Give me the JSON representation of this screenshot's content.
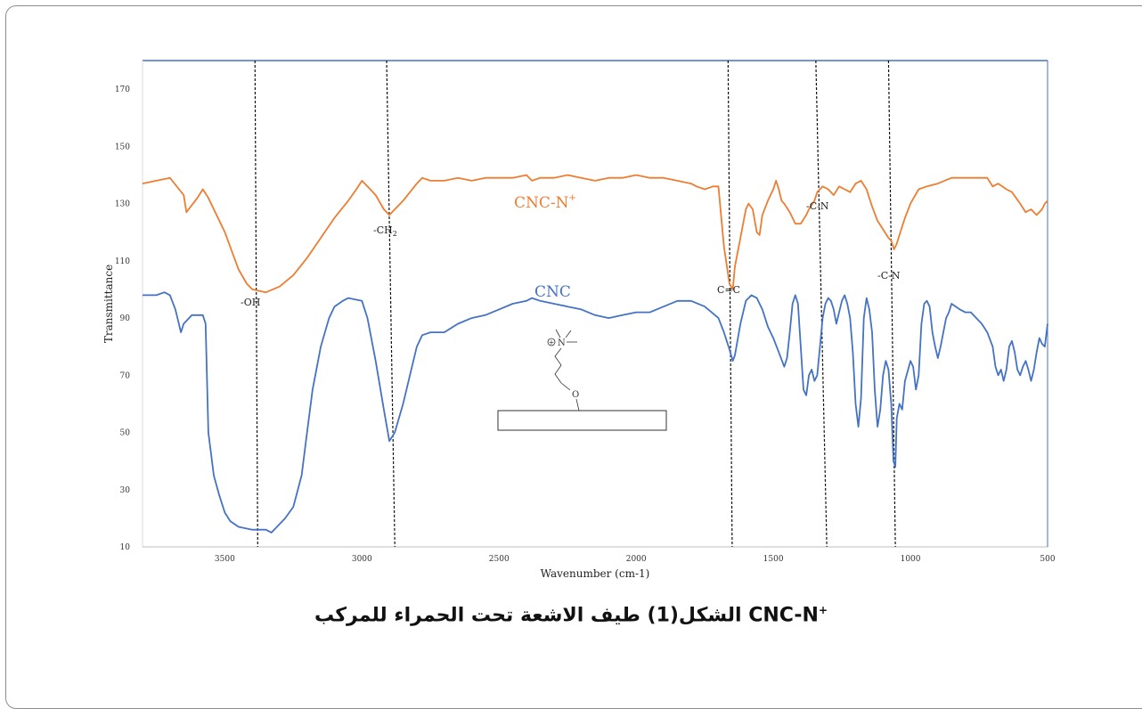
{
  "chart_data": {
    "type": "line",
    "xlabel": "Wavenumber (cm-1)",
    "ylabel": "Transmittance",
    "xlim": [
      3800,
      500
    ],
    "ylim": [
      10,
      180
    ],
    "x_reversed": true,
    "x_ticks": [
      3500,
      3000,
      2500,
      2000,
      1500,
      1000,
      500
    ],
    "y_ticks": [
      10,
      30,
      50,
      70,
      90,
      110,
      130,
      150,
      170
    ],
    "grid": false,
    "legend": "none",
    "series": [
      {
        "name": "CNC-N+",
        "color": "#ED7D31",
        "points": [
          [
            3800,
            137
          ],
          [
            3750,
            138
          ],
          [
            3700,
            139
          ],
          [
            3650,
            133
          ],
          [
            3640,
            127
          ],
          [
            3600,
            132
          ],
          [
            3580,
            135
          ],
          [
            3560,
            132
          ],
          [
            3500,
            120
          ],
          [
            3450,
            107
          ],
          [
            3420,
            102
          ],
          [
            3400,
            100
          ],
          [
            3350,
            99
          ],
          [
            3300,
            101
          ],
          [
            3250,
            105
          ],
          [
            3200,
            111
          ],
          [
            3150,
            118
          ],
          [
            3100,
            125
          ],
          [
            3050,
            131
          ],
          [
            3020,
            135
          ],
          [
            3000,
            138
          ],
          [
            2980,
            136
          ],
          [
            2950,
            133
          ],
          [
            2920,
            128
          ],
          [
            2900,
            126
          ],
          [
            2880,
            128
          ],
          [
            2850,
            131
          ],
          [
            2800,
            137
          ],
          [
            2780,
            139
          ],
          [
            2750,
            138
          ],
          [
            2700,
            138
          ],
          [
            2650,
            139
          ],
          [
            2600,
            138
          ],
          [
            2550,
            139
          ],
          [
            2500,
            139
          ],
          [
            2450,
            139
          ],
          [
            2400,
            140
          ],
          [
            2380,
            138
          ],
          [
            2350,
            139
          ],
          [
            2300,
            139
          ],
          [
            2250,
            140
          ],
          [
            2200,
            139
          ],
          [
            2150,
            138
          ],
          [
            2100,
            139
          ],
          [
            2050,
            139
          ],
          [
            2000,
            140
          ],
          [
            1950,
            139
          ],
          [
            1900,
            139
          ],
          [
            1850,
            138
          ],
          [
            1800,
            137
          ],
          [
            1780,
            136
          ],
          [
            1750,
            135
          ],
          [
            1720,
            136
          ],
          [
            1700,
            136
          ],
          [
            1680,
            115
          ],
          [
            1660,
            102
          ],
          [
            1648,
            100
          ],
          [
            1640,
            108
          ],
          [
            1620,
            118
          ],
          [
            1600,
            128
          ],
          [
            1590,
            130
          ],
          [
            1575,
            128
          ],
          [
            1560,
            120
          ],
          [
            1550,
            119
          ],
          [
            1540,
            126
          ],
          [
            1520,
            131
          ],
          [
            1500,
            135
          ],
          [
            1490,
            138
          ],
          [
            1480,
            135
          ],
          [
            1470,
            131
          ],
          [
            1460,
            130
          ],
          [
            1440,
            127
          ],
          [
            1420,
            123
          ],
          [
            1400,
            123
          ],
          [
            1380,
            126
          ],
          [
            1370,
            128
          ],
          [
            1350,
            131
          ],
          [
            1340,
            134
          ],
          [
            1320,
            136
          ],
          [
            1300,
            135
          ],
          [
            1280,
            133
          ],
          [
            1260,
            136
          ],
          [
            1240,
            135
          ],
          [
            1220,
            134
          ],
          [
            1200,
            137
          ],
          [
            1180,
            138
          ],
          [
            1160,
            135
          ],
          [
            1140,
            129
          ],
          [
            1120,
            124
          ],
          [
            1100,
            121
          ],
          [
            1080,
            118
          ],
          [
            1070,
            117
          ],
          [
            1060,
            114
          ],
          [
            1050,
            116
          ],
          [
            1040,
            119
          ],
          [
            1020,
            125
          ],
          [
            1000,
            130
          ],
          [
            970,
            135
          ],
          [
            940,
            136
          ],
          [
            900,
            137
          ],
          [
            850,
            139
          ],
          [
            800,
            139
          ],
          [
            750,
            139
          ],
          [
            720,
            139
          ],
          [
            700,
            136
          ],
          [
            680,
            137
          ],
          [
            650,
            135
          ],
          [
            630,
            134
          ],
          [
            600,
            130
          ],
          [
            580,
            127
          ],
          [
            560,
            128
          ],
          [
            540,
            126
          ],
          [
            520,
            128
          ],
          [
            510,
            130
          ],
          [
            500,
            131
          ]
        ]
      },
      {
        "name": "CNC",
        "color": "#4472C4",
        "points": [
          [
            3800,
            98
          ],
          [
            3750,
            98
          ],
          [
            3720,
            99
          ],
          [
            3700,
            98
          ],
          [
            3680,
            93
          ],
          [
            3660,
            85
          ],
          [
            3650,
            88
          ],
          [
            3620,
            91
          ],
          [
            3580,
            91
          ],
          [
            3570,
            88
          ],
          [
            3560,
            50
          ],
          [
            3540,
            35
          ],
          [
            3520,
            28
          ],
          [
            3500,
            22
          ],
          [
            3480,
            19
          ],
          [
            3450,
            17
          ],
          [
            3400,
            16
          ],
          [
            3350,
            16
          ],
          [
            3330,
            15
          ],
          [
            3310,
            17
          ],
          [
            3280,
            20
          ],
          [
            3250,
            24
          ],
          [
            3220,
            35
          ],
          [
            3200,
            50
          ],
          [
            3180,
            65
          ],
          [
            3150,
            80
          ],
          [
            3120,
            90
          ],
          [
            3100,
            94
          ],
          [
            3070,
            96
          ],
          [
            3050,
            97
          ],
          [
            3000,
            96
          ],
          [
            2980,
            90
          ],
          [
            2950,
            75
          ],
          [
            2920,
            58
          ],
          [
            2900,
            47
          ],
          [
            2880,
            50
          ],
          [
            2850,
            60
          ],
          [
            2820,
            72
          ],
          [
            2800,
            80
          ],
          [
            2780,
            84
          ],
          [
            2750,
            85
          ],
          [
            2700,
            85
          ],
          [
            2650,
            88
          ],
          [
            2600,
            90
          ],
          [
            2550,
            91
          ],
          [
            2500,
            93
          ],
          [
            2450,
            95
          ],
          [
            2400,
            96
          ],
          [
            2380,
            97
          ],
          [
            2350,
            96
          ],
          [
            2300,
            95
          ],
          [
            2250,
            94
          ],
          [
            2200,
            93
          ],
          [
            2150,
            91
          ],
          [
            2100,
            90
          ],
          [
            2050,
            91
          ],
          [
            2000,
            92
          ],
          [
            1950,
            92
          ],
          [
            1900,
            94
          ],
          [
            1850,
            96
          ],
          [
            1800,
            96
          ],
          [
            1750,
            94
          ],
          [
            1700,
            90
          ],
          [
            1680,
            85
          ],
          [
            1660,
            79
          ],
          [
            1648,
            75
          ],
          [
            1640,
            77
          ],
          [
            1620,
            88
          ],
          [
            1600,
            96
          ],
          [
            1580,
            98
          ],
          [
            1560,
            97
          ],
          [
            1540,
            93
          ],
          [
            1520,
            87
          ],
          [
            1500,
            83
          ],
          [
            1480,
            78
          ],
          [
            1460,
            73
          ],
          [
            1450,
            76
          ],
          [
            1440,
            85
          ],
          [
            1430,
            95
          ],
          [
            1420,
            98
          ],
          [
            1410,
            95
          ],
          [
            1400,
            80
          ],
          [
            1390,
            65
          ],
          [
            1380,
            63
          ],
          [
            1370,
            70
          ],
          [
            1360,
            72
          ],
          [
            1350,
            68
          ],
          [
            1340,
            70
          ],
          [
            1330,
            80
          ],
          [
            1320,
            90
          ],
          [
            1310,
            95
          ],
          [
            1300,
            97
          ],
          [
            1290,
            96
          ],
          [
            1280,
            93
          ],
          [
            1270,
            88
          ],
          [
            1260,
            92
          ],
          [
            1250,
            96
          ],
          [
            1240,
            98
          ],
          [
            1230,
            95
          ],
          [
            1220,
            90
          ],
          [
            1210,
            78
          ],
          [
            1200,
            60
          ],
          [
            1190,
            52
          ],
          [
            1180,
            62
          ],
          [
            1170,
            90
          ],
          [
            1160,
            97
          ],
          [
            1150,
            93
          ],
          [
            1140,
            85
          ],
          [
            1130,
            65
          ],
          [
            1120,
            52
          ],
          [
            1110,
            58
          ],
          [
            1100,
            70
          ],
          [
            1090,
            75
          ],
          [
            1080,
            72
          ],
          [
            1070,
            60
          ],
          [
            1062,
            40
          ],
          [
            1055,
            38
          ],
          [
            1050,
            55
          ],
          [
            1040,
            60
          ],
          [
            1030,
            58
          ],
          [
            1020,
            68
          ],
          [
            1000,
            75
          ],
          [
            990,
            73
          ],
          [
            980,
            65
          ],
          [
            970,
            70
          ],
          [
            960,
            88
          ],
          [
            950,
            95
          ],
          [
            940,
            96
          ],
          [
            930,
            94
          ],
          [
            920,
            85
          ],
          [
            910,
            80
          ],
          [
            900,
            76
          ],
          [
            890,
            80
          ],
          [
            880,
            85
          ],
          [
            870,
            90
          ],
          [
            860,
            92
          ],
          [
            850,
            95
          ],
          [
            820,
            93
          ],
          [
            800,
            92
          ],
          [
            780,
            92
          ],
          [
            760,
            90
          ],
          [
            740,
            88
          ],
          [
            720,
            85
          ],
          [
            700,
            80
          ],
          [
            690,
            73
          ],
          [
            680,
            70
          ],
          [
            670,
            72
          ],
          [
            660,
            68
          ],
          [
            650,
            72
          ],
          [
            640,
            80
          ],
          [
            630,
            82
          ],
          [
            620,
            78
          ],
          [
            610,
            72
          ],
          [
            600,
            70
          ],
          [
            590,
            73
          ],
          [
            580,
            75
          ],
          [
            570,
            72
          ],
          [
            560,
            68
          ],
          [
            550,
            72
          ],
          [
            540,
            78
          ],
          [
            530,
            83
          ],
          [
            520,
            81
          ],
          [
            510,
            80
          ],
          [
            500,
            88
          ]
        ]
      }
    ],
    "band_markers": [
      {
        "label": "-OH",
        "x_top": 3390,
        "x_bottom": 3380
      },
      {
        "label": "-CH2",
        "x_top": 2910,
        "x_bottom": 2880
      },
      {
        "label": "C=C",
        "x_top": 1665,
        "x_bottom": 1650
      },
      {
        "label": "-C-N",
        "x_top": 1345,
        "x_bottom": 1305
      },
      {
        "label": "-C-N",
        "x_top": 1080,
        "x_bottom": 1055
      }
    ],
    "annotations": {
      "orange_label": "CNC-N",
      "orange_label_sup": "+",
      "blue_label": "CNC",
      "oh": "-OH",
      "ch2": "-CH",
      "ch2_sub": "2",
      "cc": "C=C",
      "cn1": "-C-N",
      "cn2": "-C-N",
      "structure_n": "N",
      "structure_o": "O",
      "structure_plus": "+"
    }
  },
  "caption": {
    "text": "الشكل(1) طيف الاشعة تحت الحمراء للمركب CNC-N",
    "sup": "+"
  }
}
